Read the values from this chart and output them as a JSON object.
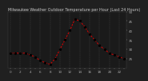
{
  "title": "Milwaukee Weather Outdoor Temperature per Hour (Last 24 Hours)",
  "hours": [
    0,
    1,
    2,
    3,
    4,
    5,
    6,
    7,
    8,
    9,
    10,
    11,
    12,
    13,
    14,
    15,
    16,
    17,
    18,
    19,
    20,
    21,
    22,
    23
  ],
  "temps": [
    28,
    28,
    28,
    28,
    27,
    26,
    24,
    23,
    22,
    25,
    30,
    35,
    40,
    46,
    45,
    42,
    38,
    35,
    32,
    30,
    28,
    27,
    26,
    25
  ],
  "line_color": "#dd0000",
  "marker_color": "#000000",
  "bg_color": "#202020",
  "plot_bg": "#1a1a1a",
  "grid_color": "#555555",
  "ylim": [
    20,
    50
  ],
  "ytick_vals": [
    25,
    30,
    35,
    40,
    45,
    50
  ],
  "ytick_labels": [
    "25",
    "30",
    "35",
    "40",
    "45",
    "50"
  ],
  "xtick_vals": [
    0,
    1,
    2,
    3,
    4,
    5,
    6,
    7,
    8,
    9,
    10,
    11,
    12,
    13,
    14,
    15,
    16,
    17,
    18,
    19,
    20,
    21,
    22,
    23
  ],
  "ylabel_fontsize": 3.0,
  "xlabel_fontsize": 3.0,
  "title_fontsize": 3.5,
  "title_color": "#cccccc",
  "tick_color": "#aaaaaa"
}
